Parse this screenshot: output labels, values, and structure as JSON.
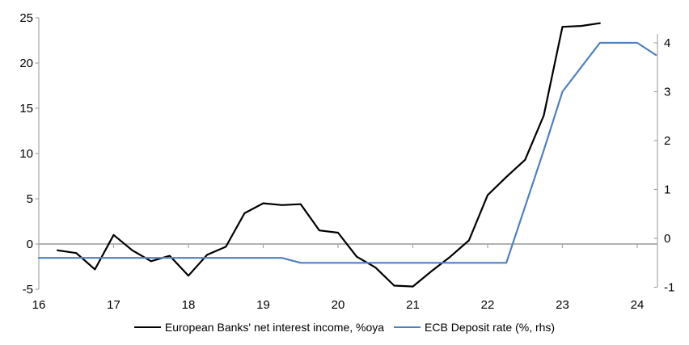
{
  "chart_data": {
    "type": "line",
    "title": "",
    "xlabel": "",
    "ylabel_left": "",
    "ylabel_right": "",
    "grid": "zero-line-only",
    "legend_position": "bottom",
    "x_axis": {
      "ticks": [
        16,
        17,
        18,
        19,
        20,
        21,
        22,
        23,
        24
      ],
      "range": [
        16,
        24.3
      ]
    },
    "left_axis": {
      "ticks": [
        25,
        20,
        15,
        10,
        5,
        0,
        -5
      ],
      "range": [
        -5,
        25
      ]
    },
    "right_axis": {
      "ticks": [
        4,
        3,
        2,
        1,
        0,
        -1
      ],
      "range": [
        -1,
        4.2
      ]
    },
    "series": [
      {
        "name": "European Banks' net interest income, %oya",
        "axis": "left",
        "color": "#000000",
        "points": [
          [
            16.25,
            -0.7
          ],
          [
            16.5,
            -1.0
          ],
          [
            16.75,
            -2.8
          ],
          [
            17.0,
            1.0
          ],
          [
            17.25,
            -0.7
          ],
          [
            17.5,
            -1.9
          ],
          [
            17.75,
            -1.3
          ],
          [
            18.0,
            -3.5
          ],
          [
            18.25,
            -1.2
          ],
          [
            18.5,
            -0.3
          ],
          [
            18.75,
            3.4
          ],
          [
            19.0,
            4.5
          ],
          [
            19.25,
            4.3
          ],
          [
            19.5,
            4.4
          ],
          [
            19.75,
            1.5
          ],
          [
            20.0,
            1.25
          ],
          [
            20.25,
            -1.4
          ],
          [
            20.5,
            -2.6
          ],
          [
            20.75,
            -4.6
          ],
          [
            21.0,
            -4.7
          ],
          [
            21.25,
            -3.0
          ],
          [
            21.5,
            -1.4
          ],
          [
            21.75,
            0.4
          ],
          [
            22.0,
            5.4
          ],
          [
            22.25,
            7.4
          ],
          [
            22.5,
            9.3
          ],
          [
            22.75,
            14.2
          ],
          [
            23.0,
            24.0
          ],
          [
            23.25,
            24.1
          ],
          [
            23.5,
            24.4
          ]
        ]
      },
      {
        "name": "ECB Deposit rate (%, rhs)",
        "axis": "right",
        "color": "#4f81bd",
        "points": [
          [
            16.0,
            -0.4
          ],
          [
            17.0,
            -0.4
          ],
          [
            18.0,
            -0.4
          ],
          [
            19.0,
            -0.4
          ],
          [
            19.25,
            -0.4
          ],
          [
            19.5,
            -0.5
          ],
          [
            20.0,
            -0.5
          ],
          [
            21.0,
            -0.5
          ],
          [
            22.0,
            -0.5
          ],
          [
            22.25,
            -0.5
          ],
          [
            22.5,
            0.65
          ],
          [
            22.75,
            1.8
          ],
          [
            23.0,
            3.0
          ],
          [
            23.25,
            3.5
          ],
          [
            23.5,
            4.0
          ],
          [
            23.75,
            4.0
          ],
          [
            24.0,
            4.0
          ],
          [
            24.25,
            3.75
          ]
        ]
      }
    ]
  },
  "legend": {
    "series1_label": "European Banks' net interest income, %oya",
    "series2_label": "ECB Deposit rate (%, rhs)"
  },
  "colors": {
    "nii_line": "#000000",
    "ecb_line": "#4f81bd",
    "axis_gray": "#a6a6a6",
    "text": "#000000",
    "background": "#ffffff"
  }
}
